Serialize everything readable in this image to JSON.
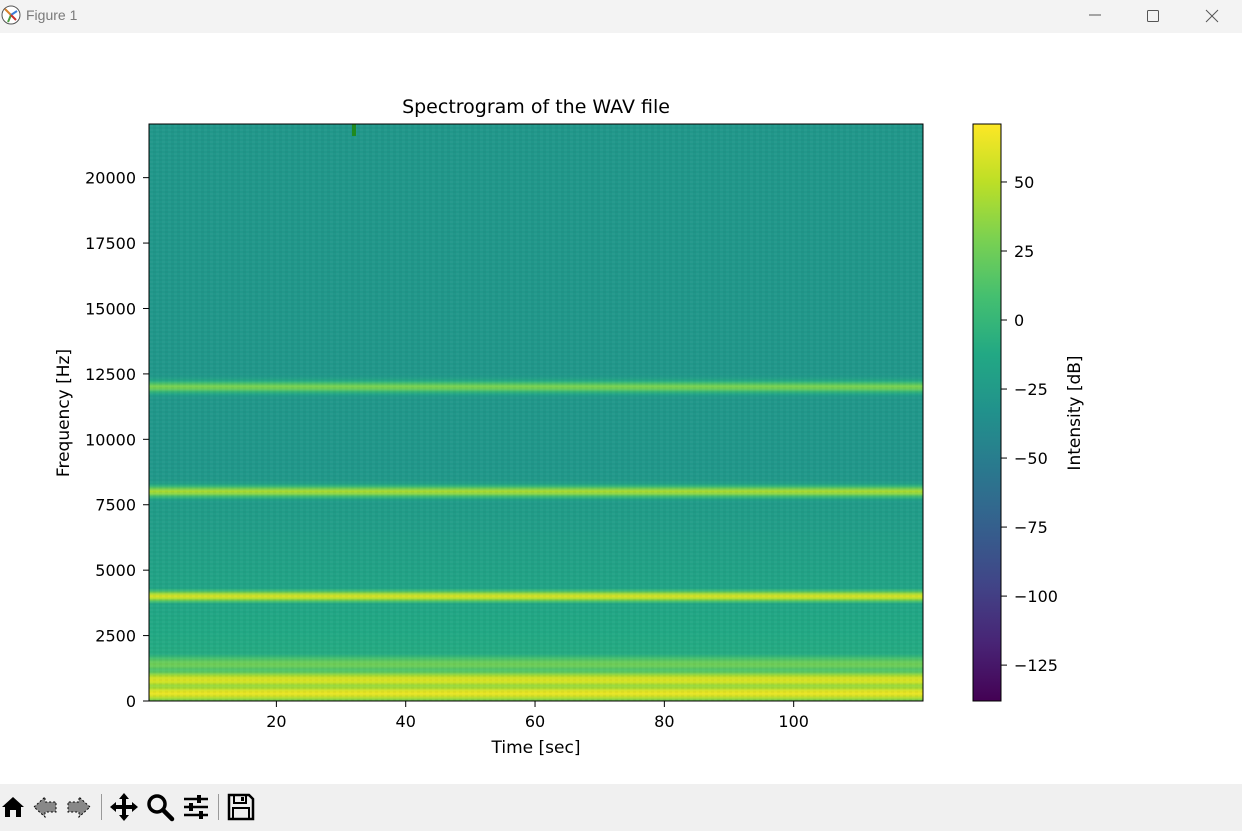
{
  "window": {
    "title": "Figure 1",
    "icon": "matplotlib-icon",
    "controls": [
      "minimize-icon",
      "maximize-icon",
      "close-icon"
    ]
  },
  "toolbar": {
    "buttons": [
      "home-icon",
      "back-arrow-icon",
      "forward-arrow-icon",
      "pan-icon",
      "zoom-icon",
      "configure-subplots-icon",
      "save-icon"
    ]
  },
  "chart_data": {
    "type": "heatmap",
    "title": "Spectrogram of the WAV file",
    "xlabel": "Time [sec]",
    "ylabel": "Frequency [Hz]",
    "xlim": [
      0.3,
      120
    ],
    "ylim": [
      0,
      22050
    ],
    "x_ticks": [
      20,
      40,
      60,
      80,
      100
    ],
    "y_ticks": [
      0,
      2500,
      5000,
      7500,
      10000,
      12500,
      15000,
      17500,
      20000
    ],
    "colormap": "viridis",
    "colorbar": {
      "label": "Intensity [dB]",
      "range": [
        -138,
        71
      ],
      "ticks": [
        -125,
        -100,
        -75,
        -50,
        -25,
        0,
        25,
        50
      ]
    },
    "frequency_bands": [
      {
        "frequency_hz": 300,
        "intensity_db": 65
      },
      {
        "frequency_hz": 800,
        "intensity_db": 60
      },
      {
        "frequency_hz": 1400,
        "intensity_db": 25
      },
      {
        "frequency_hz": 4000,
        "intensity_db": 60
      },
      {
        "frequency_hz": 8000,
        "intensity_db": 45
      },
      {
        "frequency_hz": 12000,
        "intensity_db": 30
      }
    ],
    "background_intensity_db": -28,
    "colors": {
      "low": "#440154",
      "mid": "#21918c",
      "high": "#fde725"
    }
  }
}
